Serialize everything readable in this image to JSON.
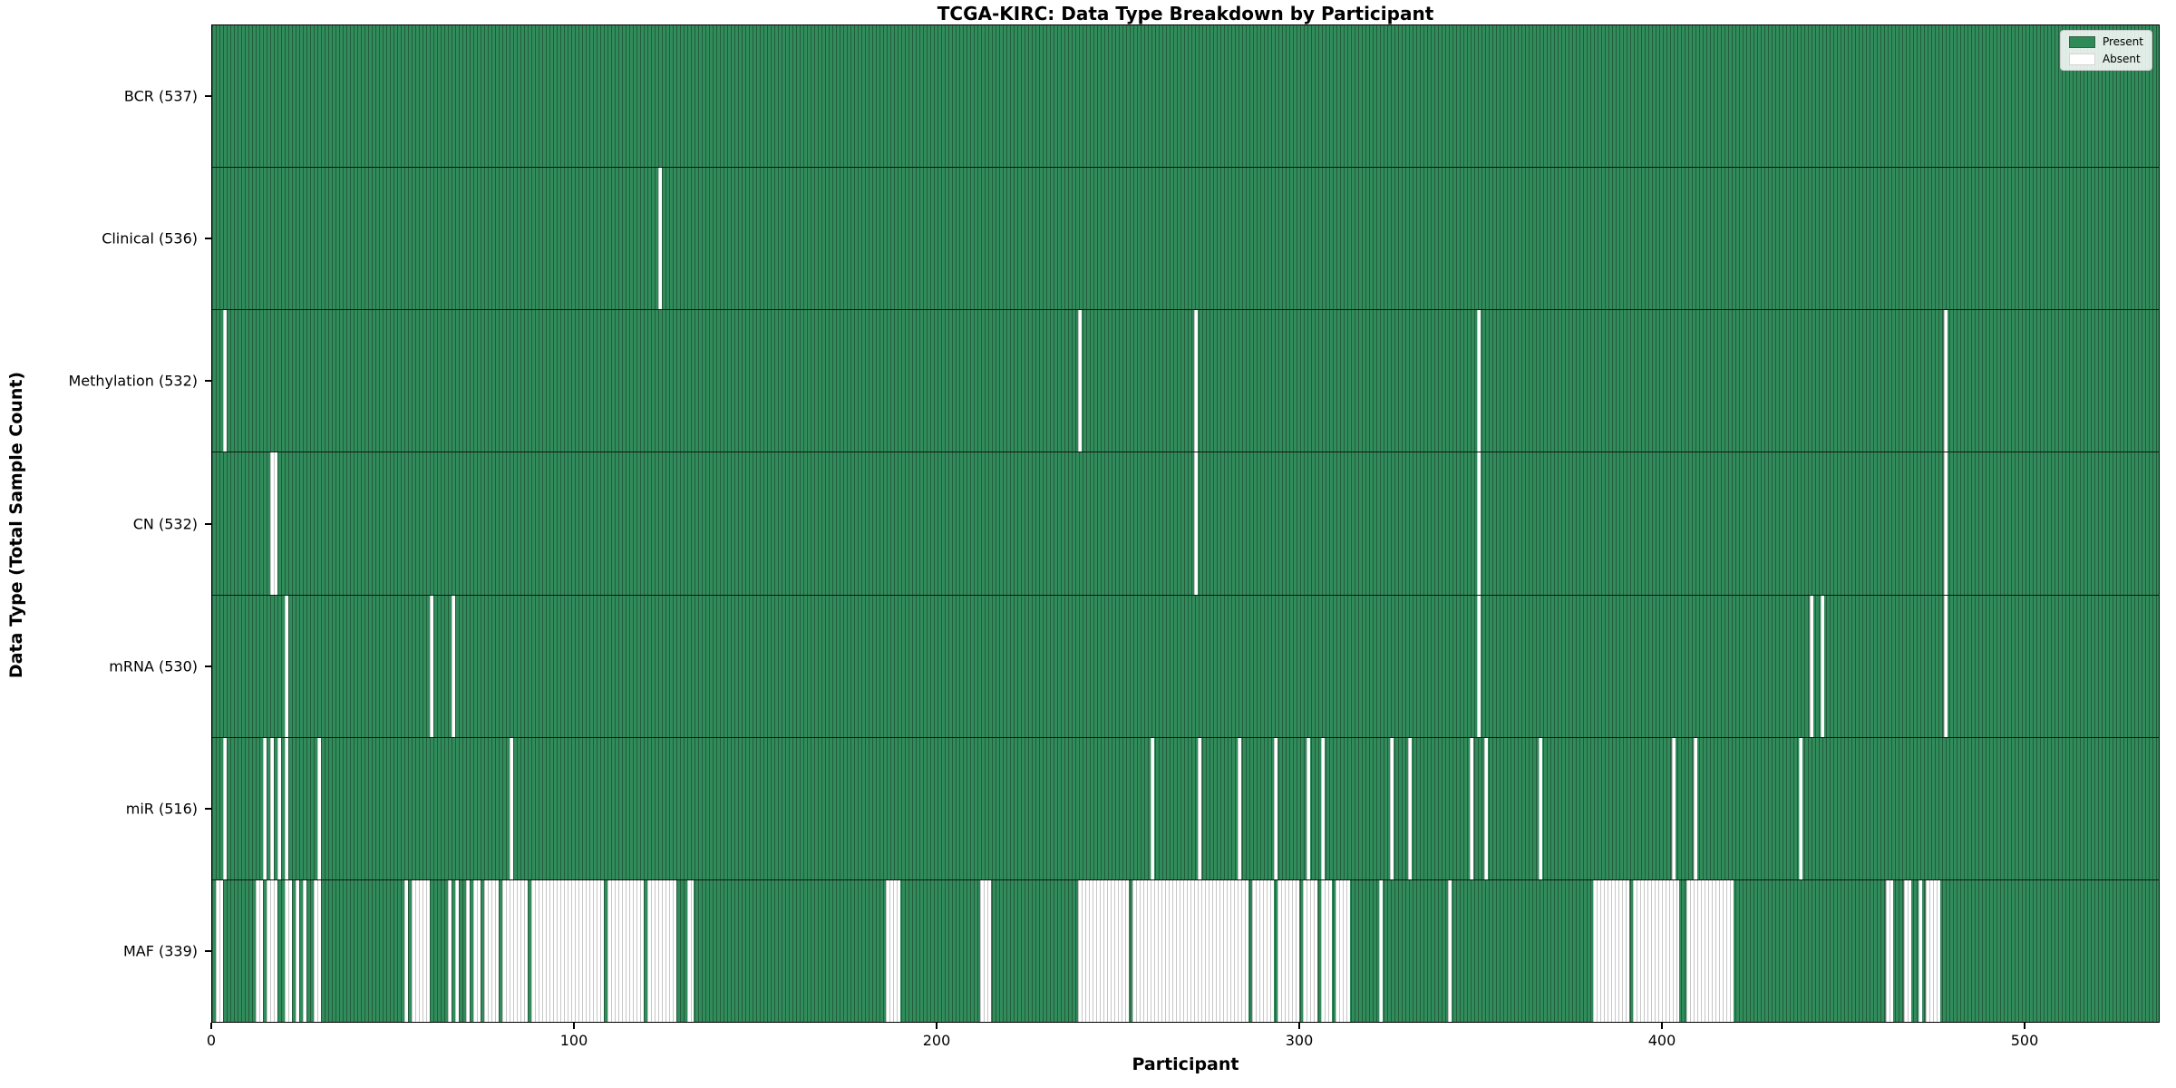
{
  "title": "TCGA-KIRC: Data Type Breakdown by Participant",
  "x_axis": {
    "label": "Participant",
    "ticks": [
      "0",
      "100",
      "200",
      "300",
      "400",
      "500"
    ],
    "tick_values": [
      0,
      100,
      200,
      300,
      400,
      500
    ],
    "max": 537.25
  },
  "y_axis": {
    "label": "Data Type (Total Sample Count)"
  },
  "legend": {
    "present_label": "Present",
    "absent_label": "Absent"
  },
  "colors": {
    "present": "#2e8b57",
    "absent": "#ffffff"
  },
  "chart_data": {
    "type": "heatmap",
    "title": "TCGA-KIRC: Data Type Breakdown by Participant",
    "xlabel": "Participant",
    "ylabel": "Data Type (Total Sample Count)",
    "xlim": [
      0,
      537.25
    ],
    "x_ticks": [
      0,
      100,
      200,
      300,
      400,
      500
    ],
    "total_participants": 537,
    "legend_position": "upper right",
    "legend_entries": [
      "Present",
      "Absent"
    ],
    "present_color": "#2e8b57",
    "absent_color": "#ffffff",
    "rows": [
      {
        "label": "BCR (537)",
        "data_type": "BCR",
        "present_count": 537,
        "absent_ranges": []
      },
      {
        "label": "Clinical (536)",
        "data_type": "Clinical",
        "present_count": 536,
        "absent_ranges": [
          [
            123,
            123
          ]
        ]
      },
      {
        "label": "Methylation (532)",
        "data_type": "Methylation",
        "present_count": 532,
        "absent_ranges": [
          [
            3,
            3
          ],
          [
            239,
            239
          ],
          [
            271,
            271
          ],
          [
            349,
            349
          ],
          [
            478,
            478
          ]
        ]
      },
      {
        "label": "CN (532)",
        "data_type": "CN",
        "present_count": 532,
        "absent_ranges": [
          [
            16,
            17
          ],
          [
            271,
            271
          ],
          [
            349,
            349
          ],
          [
            478,
            478
          ]
        ]
      },
      {
        "label": "mRNA (530)",
        "data_type": "mRNA",
        "present_count": 530,
        "absent_ranges": [
          [
            20,
            20
          ],
          [
            60,
            60
          ],
          [
            66,
            66
          ],
          [
            349,
            349
          ],
          [
            441,
            441
          ],
          [
            444,
            444
          ],
          [
            478,
            478
          ]
        ]
      },
      {
        "label": "miR (516)",
        "data_type": "miR",
        "present_count": 516,
        "absent_ranges": [
          [
            3,
            3
          ],
          [
            14,
            14
          ],
          [
            16,
            16
          ],
          [
            18,
            18
          ],
          [
            20,
            20
          ],
          [
            29,
            29
          ],
          [
            82,
            82
          ],
          [
            259,
            259
          ],
          [
            272,
            272
          ],
          [
            283,
            283
          ],
          [
            293,
            293
          ],
          [
            302,
            302
          ],
          [
            306,
            306
          ],
          [
            325,
            325
          ],
          [
            330,
            330
          ],
          [
            347,
            347
          ],
          [
            351,
            351
          ],
          [
            366,
            366
          ],
          [
            403,
            403
          ],
          [
            409,
            409
          ],
          [
            438,
            438
          ]
        ]
      },
      {
        "label": "MAF (339)",
        "data_type": "MAF",
        "present_count": 339,
        "absent_ranges": [
          [
            1,
            2
          ],
          [
            12,
            13
          ],
          [
            15,
            17
          ],
          [
            20,
            21
          ],
          [
            23,
            23
          ],
          [
            25,
            25
          ],
          [
            28,
            29
          ],
          [
            53,
            53
          ],
          [
            55,
            59
          ],
          [
            65,
            65
          ],
          [
            67,
            67
          ],
          [
            70,
            70
          ],
          [
            72,
            73
          ],
          [
            75,
            78
          ],
          [
            80,
            86
          ],
          [
            88,
            107
          ],
          [
            109,
            118
          ],
          [
            120,
            127
          ],
          [
            131,
            132
          ],
          [
            186,
            189
          ],
          [
            212,
            214
          ],
          [
            239,
            252
          ],
          [
            254,
            269
          ],
          [
            270,
            285
          ],
          [
            287,
            292
          ],
          [
            294,
            299
          ],
          [
            301,
            304
          ],
          [
            306,
            308
          ],
          [
            310,
            313
          ],
          [
            322,
            322
          ],
          [
            341,
            341
          ],
          [
            381,
            390
          ],
          [
            392,
            404
          ],
          [
            407,
            419
          ],
          [
            462,
            463
          ],
          [
            467,
            468
          ],
          [
            471,
            471
          ],
          [
            473,
            476
          ]
        ]
      }
    ]
  }
}
